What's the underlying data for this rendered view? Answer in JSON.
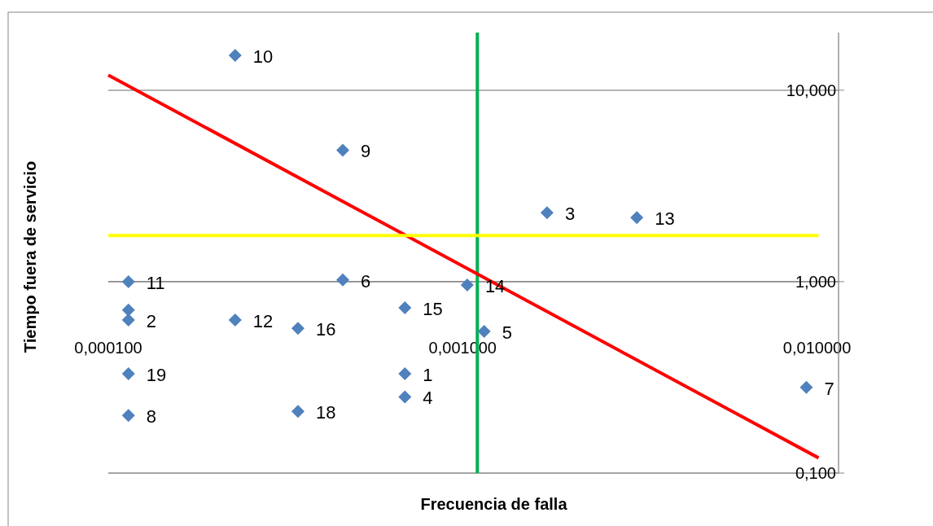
{
  "chart_data": {
    "type": "scatter",
    "xlabel": "Frecuencia de falla",
    "ylabel": "Tiempo fuera de servicio",
    "log": "xy",
    "grid": "y",
    "marker": "diamond",
    "xlim": [
      0.0001,
      0.0115
    ],
    "xticks": [
      {
        "value": 0.0001,
        "label": "0,000100"
      },
      {
        "value": 0.001,
        "label": "0,001000"
      },
      {
        "value": 0.01,
        "label": "0,010000"
      }
    ],
    "ylim": [
      0.1,
      20
    ],
    "yticks": [
      {
        "value": 0.1,
        "label": "0,100"
      },
      {
        "value": 1,
        "label": "1,000"
      },
      {
        "value": 10,
        "label": "10,000"
      }
    ],
    "series": [
      {
        "color": "#4f81bd",
        "x": [
          0.000687,
          0.000114,
          0.00173,
          0.000687,
          0.00115,
          0.000459,
          0.00933,
          0.000114,
          0.000459,
          0.000228,
          0.000114,
          0.000228,
          0.0031,
          0.00103,
          0.000687,
          0.000343,
          0.000114,
          0.000343,
          0.000114
        ],
        "values": [
          0.33,
          0.63,
          2.29,
          0.25,
          0.55,
          1.02,
          0.28,
          0.2,
          4.86,
          15.2,
          1.0,
          0.63,
          2.16,
          0.96,
          0.73,
          0.57,
          0.71,
          0.21,
          0.33
        ]
      },
      {
        "type": "line",
        "marker": "none",
        "color": "#ff0000",
        "x": [
          0.0001,
          0.0101
        ],
        "values": [
          12,
          0.12
        ]
      },
      {
        "type": "line",
        "marker": "none",
        "color": "#ffff00",
        "x": [
          0.0001,
          0.0101
        ],
        "values": [
          1.74,
          1.74
        ]
      }
    ],
    "ref_lines": [
      {
        "axis": "x",
        "value": 0.0011,
        "color": "#00b050"
      }
    ],
    "annotations": [
      {
        "text": "1",
        "x": 0.000687,
        "y": 0.33
      },
      {
        "text": "2",
        "x": 0.000114,
        "y": 0.63
      },
      {
        "text": "3",
        "x": 0.00173,
        "y": 2.29
      },
      {
        "text": "4",
        "x": 0.000687,
        "y": 0.25
      },
      {
        "text": "5",
        "x": 0.00115,
        "y": 0.55
      },
      {
        "text": "6",
        "x": 0.000459,
        "y": 1.02
      },
      {
        "text": "7",
        "x": 0.00933,
        "y": 0.28
      },
      {
        "text": "8",
        "x": 0.000114,
        "y": 0.2
      },
      {
        "text": "9",
        "x": 0.000459,
        "y": 4.86
      },
      {
        "text": "10",
        "x": 0.000228,
        "y": 15.2
      },
      {
        "text": "11",
        "x": 0.000114,
        "y": 1.0
      },
      {
        "text": "12",
        "x": 0.000228,
        "y": 0.63
      },
      {
        "text": "13",
        "x": 0.0031,
        "y": 2.16
      },
      {
        "text": "14",
        "x": 0.00103,
        "y": 0.96
      },
      {
        "text": "15",
        "x": 0.000687,
        "y": 0.73
      },
      {
        "text": "16",
        "x": 0.000343,
        "y": 0.57
      },
      {
        "text": "18",
        "x": 0.000343,
        "y": 0.21
      },
      {
        "text": "19",
        "x": 0.000114,
        "y": 0.33
      }
    ]
  }
}
